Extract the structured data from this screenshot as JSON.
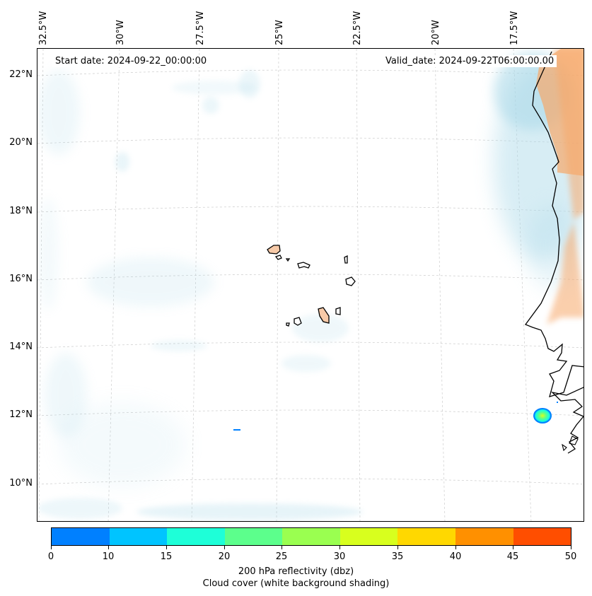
{
  "header": {
    "start_date": "Start date: 2024-09-22_00:00:00",
    "valid_date": "Valid_date: 2024-09-22T06:00:00.00"
  },
  "axes": {
    "longitude_labels": [
      "32.5°W",
      "30°W",
      "27.5°W",
      "25°W",
      "22.5°W",
      "20°W",
      "17.5°W"
    ],
    "latitude_labels": [
      "22°N",
      "20°N",
      "18°N",
      "16°N",
      "14°N",
      "12°N",
      "10°N"
    ]
  },
  "colorbar": {
    "ticks": [
      "0",
      "10",
      "15",
      "20",
      "25",
      "30",
      "35",
      "40",
      "45",
      "50"
    ],
    "colors": [
      "#0080ff",
      "#00c4ff",
      "#1effd8",
      "#5cff8c",
      "#9aff50",
      "#d8ff1e",
      "#ffd800",
      "#ff9000",
      "#ff4e00"
    ],
    "label_line1": "200 hPa reflectivity (dbz)",
    "label_line2": "Cloud cover (white background shading)"
  },
  "colors": {
    "cloud": "#a8d8e8",
    "land": "#f7a86a",
    "coast": "#000000",
    "grid": "#c8c8c8"
  }
}
